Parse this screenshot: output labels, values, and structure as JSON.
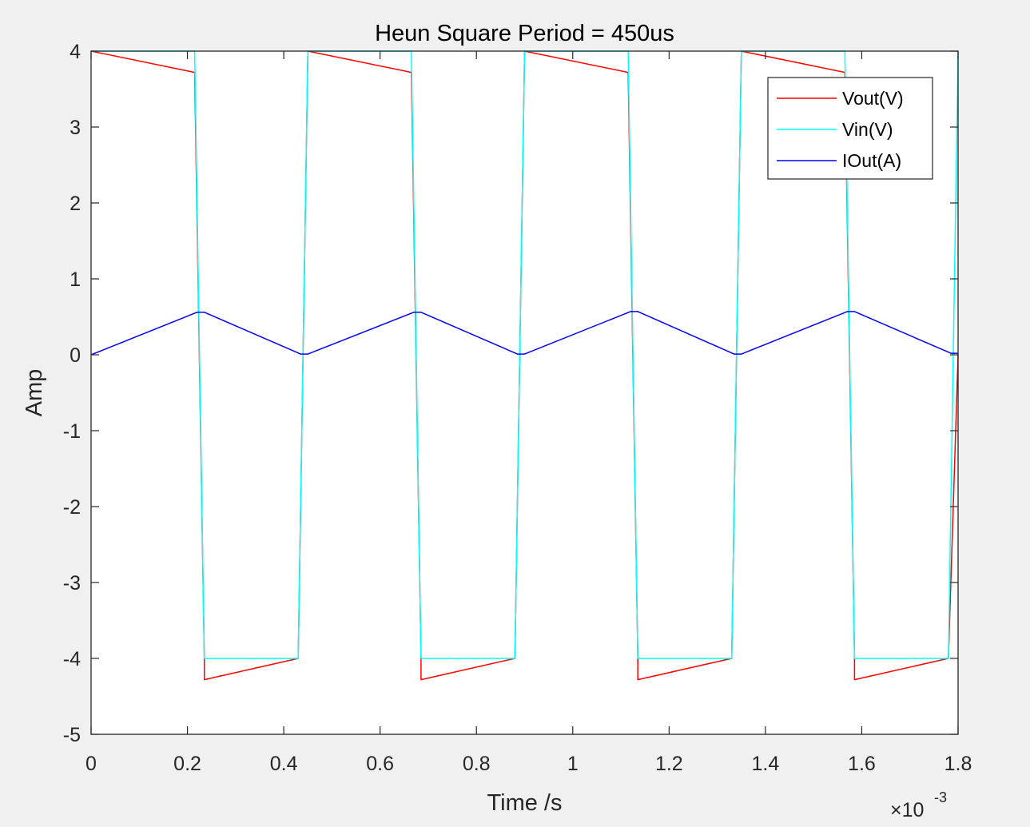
{
  "chart_data": {
    "type": "line",
    "title": "Heun Square Period = 450us",
    "xlabel": "Time /s",
    "ylabel": "Amp",
    "x_exponent_label": "×10",
    "x_exponent_power": "-3",
    "x_scale_factor": 0.001,
    "xlim": [
      0,
      1.8
    ],
    "ylim": [
      -5,
      4
    ],
    "x_ticks": [
      0,
      0.2,
      0.4,
      0.6,
      0.8,
      1,
      1.2,
      1.4,
      1.6,
      1.8
    ],
    "x_tick_labels": [
      "0",
      "0.2",
      "0.4",
      "0.6",
      "0.8",
      "1",
      "1.2",
      "1.4",
      "1.6",
      "1.8"
    ],
    "y_ticks": [
      4,
      3,
      2,
      1,
      0,
      -1,
      -2,
      -3,
      -4,
      -5
    ],
    "y_tick_labels": [
      "4",
      "3",
      "2",
      "1",
      "0",
      "-1",
      "-2",
      "-3",
      "-4",
      "-5"
    ],
    "grid": false,
    "legend_position": "top-right",
    "series": [
      {
        "name": "Vout(V)",
        "color": "#ff0000",
        "x": [
          0,
          0.215,
          0.235,
          0.235,
          0.43,
          0.45,
          0.45,
          0.665,
          0.685,
          0.685,
          0.88,
          0.9,
          0.9,
          1.115,
          1.135,
          1.135,
          1.33,
          1.35,
          1.35,
          1.565,
          1.585,
          1.585,
          1.78,
          1.8
        ],
        "y": [
          4,
          3.72,
          -4,
          -4.28,
          -4,
          4,
          4,
          3.72,
          -4,
          -4.28,
          -4,
          4,
          4,
          3.72,
          -4,
          -4.28,
          -4,
          4,
          4,
          3.72,
          -4,
          -4.28,
          -4,
          0
        ]
      },
      {
        "name": "Vin(V)",
        "color": "#00ffff",
        "x": [
          0,
          0.215,
          0.235,
          0.43,
          0.45,
          0.665,
          0.685,
          0.88,
          0.9,
          1.115,
          1.135,
          1.33,
          1.35,
          1.565,
          1.585,
          1.78,
          1.8
        ],
        "y": [
          4,
          4,
          -4,
          -4,
          4,
          4,
          -4,
          -4,
          4,
          4,
          -4,
          -4,
          4,
          4,
          -4,
          -4,
          4
        ]
      },
      {
        "name": "IOut(A)",
        "color": "#0000ff",
        "x": [
          0,
          0.22,
          0.235,
          0.435,
          0.45,
          0.67,
          0.685,
          0.885,
          0.9,
          1.12,
          1.135,
          1.335,
          1.35,
          1.57,
          1.585,
          1.785,
          1.8
        ],
        "y": [
          0,
          0.56,
          0.56,
          0.01,
          0.01,
          0.56,
          0.56,
          0.01,
          0.01,
          0.57,
          0.57,
          0.01,
          0.01,
          0.57,
          0.57,
          0.02,
          0.02
        ]
      }
    ]
  }
}
